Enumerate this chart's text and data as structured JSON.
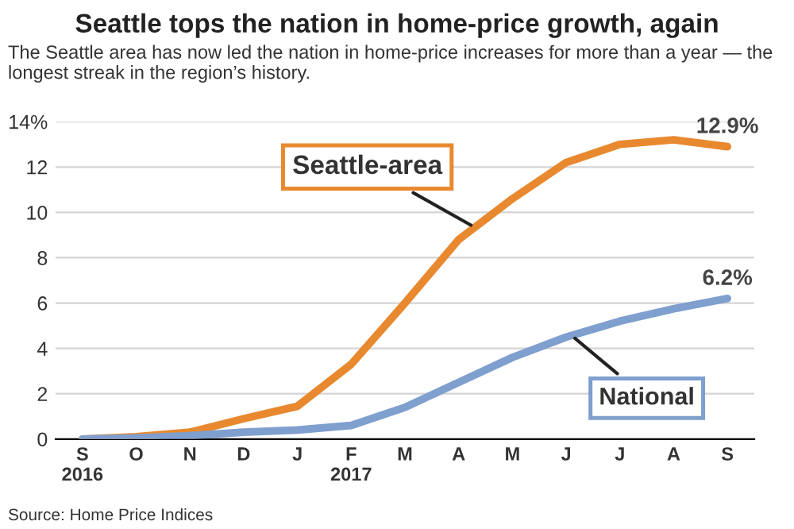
{
  "chart_data": {
    "type": "line",
    "title": "Seattle tops the nation in home-price growth, again",
    "subtitle": "The Seattle area has now led the nation in home-price increases for more than a year — the longest streak in the region’s history.",
    "categories": [
      "S\n2016",
      "O",
      "N",
      "D",
      "J",
      "F\n2017",
      "M",
      "A",
      "M",
      "J",
      "J",
      "A",
      "S"
    ],
    "series": [
      {
        "name": "Seattle-area",
        "color": "#e8892f",
        "values": [
          0,
          0.1,
          0.3,
          0.9,
          1.45,
          3.3,
          6.0,
          8.8,
          10.6,
          12.2,
          13.0,
          13.2,
          12.9
        ],
        "value_labels": [
          null,
          null,
          null,
          null,
          null,
          null,
          null,
          null,
          null,
          null,
          null,
          null,
          "12.9%"
        ]
      },
      {
        "name": "National",
        "color": "#7f9fcf",
        "values": [
          0,
          0.05,
          0.15,
          0.3,
          0.4,
          0.6,
          1.4,
          2.5,
          3.6,
          4.5,
          5.2,
          5.75,
          6.2
        ],
        "value_labels": [
          null,
          null,
          null,
          null,
          null,
          null,
          null,
          null,
          null,
          null,
          null,
          null,
          "6.2%"
        ]
      }
    ],
    "ylim": [
      0,
      14
    ],
    "yticks": [
      0,
      2,
      4,
      6,
      8,
      10,
      12,
      {
        "value": 14,
        "label": "14%"
      }
    ],
    "grid": "y",
    "legend": false,
    "marker": "none",
    "line_style": "solid",
    "annotations": [
      "Source: Home Price Indices"
    ]
  }
}
